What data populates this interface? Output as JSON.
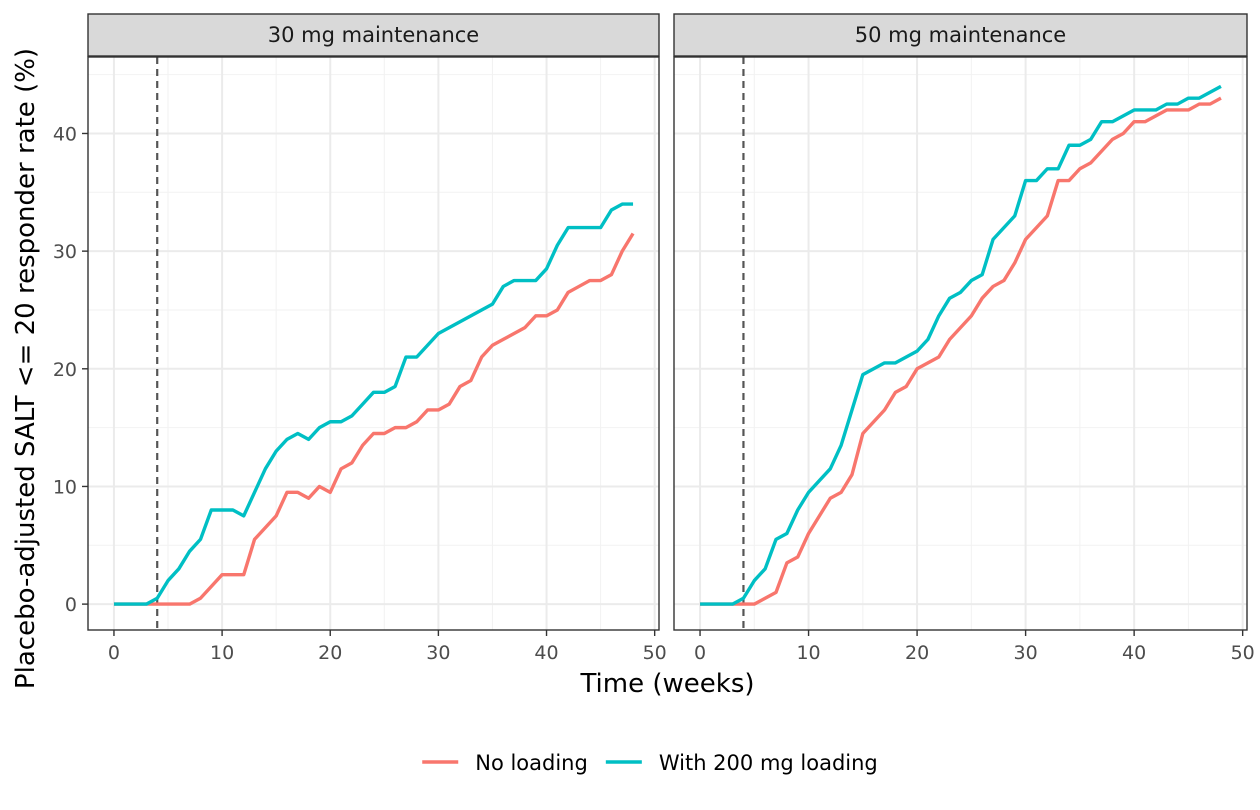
{
  "chart_data": {
    "type": "line",
    "xlabel": "Time (weeks)",
    "ylabel": "Placebo-adjusted SALT <= 20 responder rate (%)",
    "xlim": [
      -2.4,
      50.4
    ],
    "ylim": [
      -2.2,
      46.5
    ],
    "x_ticks": [
      0,
      10,
      20,
      30,
      40,
      50
    ],
    "y_ticks": [
      0,
      10,
      20,
      30,
      40
    ],
    "vline_x": 4,
    "grid": true,
    "legend_position": "bottom",
    "legend": [
      {
        "name": "No loading",
        "color": "#F8766D"
      },
      {
        "name": "With 200 mg loading",
        "color": "#00BFC4"
      }
    ],
    "panels": [
      {
        "strip": "30 mg maintenance",
        "series": [
          {
            "name": "No loading",
            "color": "#F8766D",
            "x": [
              0,
              1,
              2,
              3,
              4,
              5,
              6,
              7,
              8,
              9,
              10,
              11,
              12,
              13,
              14,
              15,
              16,
              17,
              18,
              19,
              20,
              21,
              22,
              23,
              24,
              25,
              26,
              27,
              28,
              29,
              30,
              31,
              32,
              33,
              34,
              35,
              36,
              37,
              38,
              39,
              40,
              41,
              42,
              43,
              44,
              45,
              46,
              47,
              48
            ],
            "y": [
              0,
              0,
              0,
              0,
              0,
              0,
              0,
              0,
              0.5,
              1.5,
              2.5,
              2.5,
              2.5,
              5.5,
              6.5,
              7.5,
              9.5,
              9.5,
              9,
              10,
              9.5,
              11.5,
              12,
              13.5,
              14.5,
              14.5,
              15,
              15,
              15.5,
              16.5,
              16.5,
              17,
              18.5,
              19,
              21,
              22,
              22.5,
              23,
              23.5,
              24.5,
              24.5,
              25,
              26.5,
              27,
              27.5,
              27.5,
              28,
              30,
              31.5
            ]
          },
          {
            "name": "With 200 mg loading",
            "color": "#00BFC4",
            "x": [
              0,
              1,
              2,
              3,
              4,
              5,
              6,
              7,
              8,
              9,
              10,
              11,
              12,
              13,
              14,
              15,
              16,
              17,
              18,
              19,
              20,
              21,
              22,
              23,
              24,
              25,
              26,
              27,
              28,
              29,
              30,
              31,
              32,
              33,
              34,
              35,
              36,
              37,
              38,
              39,
              40,
              41,
              42,
              43,
              44,
              45,
              46,
              47,
              48
            ],
            "y": [
              0,
              0,
              0,
              0,
              0.5,
              2,
              3,
              4.5,
              5.5,
              8,
              8,
              8,
              7.5,
              9.5,
              11.5,
              13,
              14,
              14.5,
              14,
              15,
              15.5,
              15.5,
              16,
              17,
              18,
              18,
              18.5,
              21,
              21,
              22,
              23,
              23.5,
              24,
              24.5,
              25,
              25.5,
              27,
              27.5,
              27.5,
              27.5,
              28.5,
              30.5,
              32,
              32,
              32,
              32,
              33.5,
              34,
              34
            ]
          }
        ]
      },
      {
        "strip": "50 mg maintenance",
        "series": [
          {
            "name": "No loading",
            "color": "#F8766D",
            "x": [
              0,
              1,
              2,
              3,
              4,
              5,
              6,
              7,
              8,
              9,
              10,
              11,
              12,
              13,
              14,
              15,
              16,
              17,
              18,
              19,
              20,
              21,
              22,
              23,
              24,
              25,
              26,
              27,
              28,
              29,
              30,
              31,
              32,
              33,
              34,
              35,
              36,
              37,
              38,
              39,
              40,
              41,
              42,
              43,
              44,
              45,
              46,
              47,
              48
            ],
            "y": [
              0,
              0,
              0,
              0,
              0,
              0,
              0.5,
              1,
              3.5,
              4,
              6,
              7.5,
              9,
              9.5,
              11,
              14.5,
              15.5,
              16.5,
              18,
              18.5,
              20,
              20.5,
              21,
              22.5,
              23.5,
              24.5,
              26,
              27,
              27.5,
              29,
              31,
              32,
              33,
              36,
              36,
              37,
              37.5,
              38.5,
              39.5,
              40,
              41,
              41,
              41.5,
              42,
              42,
              42,
              42.5,
              42.5,
              43
            ]
          },
          {
            "name": "With 200 mg loading",
            "color": "#00BFC4",
            "x": [
              0,
              1,
              2,
              3,
              4,
              5,
              6,
              7,
              8,
              9,
              10,
              11,
              12,
              13,
              14,
              15,
              16,
              17,
              18,
              19,
              20,
              21,
              22,
              23,
              24,
              25,
              26,
              27,
              28,
              29,
              30,
              31,
              32,
              33,
              34,
              35,
              36,
              37,
              38,
              39,
              40,
              41,
              42,
              43,
              44,
              45,
              46,
              47,
              48
            ],
            "y": [
              0,
              0,
              0,
              0,
              0.5,
              2,
              3,
              5.5,
              6,
              8,
              9.5,
              10.5,
              11.5,
              13.5,
              16.5,
              19.5,
              20,
              20.5,
              20.5,
              21,
              21.5,
              22.5,
              24.5,
              26,
              26.5,
              27.5,
              28,
              31,
              32,
              33,
              36,
              36,
              37,
              37,
              39,
              39,
              39.5,
              41,
              41,
              41.5,
              42,
              42,
              42,
              42.5,
              42.5,
              43,
              43,
              43.5,
              44
            ]
          }
        ]
      }
    ]
  }
}
